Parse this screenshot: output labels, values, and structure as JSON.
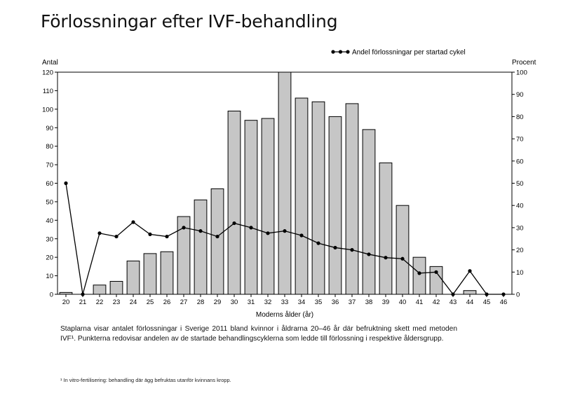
{
  "title": "Förlossningar efter IVF-behandling",
  "chart_data": {
    "type": "bar",
    "categories": [
      "20",
      "21",
      "22",
      "23",
      "24",
      "25",
      "26",
      "27",
      "28",
      "29",
      "30",
      "31",
      "32",
      "33",
      "34",
      "35",
      "36",
      "37",
      "38",
      "39",
      "40",
      "41",
      "42",
      "43",
      "44",
      "45",
      "46"
    ],
    "series": [
      {
        "name": "Antal förlossningar",
        "kind": "bar",
        "axis": "left",
        "values": [
          1,
          0,
          5,
          7,
          18,
          22,
          23,
          42,
          51,
          57,
          99,
          94,
          95,
          120,
          106,
          104,
          96,
          103,
          89,
          71,
          48,
          20,
          15,
          0,
          2,
          0,
          0
        ]
      },
      {
        "name": "Andel förlossningar per startad cykel",
        "kind": "line",
        "axis": "right",
        "values": [
          50,
          0,
          27.5,
          26,
          32.5,
          27,
          26,
          30,
          28.5,
          26,
          32,
          30,
          27.5,
          28.5,
          26.5,
          23,
          21,
          20,
          18,
          16.5,
          16,
          9.5,
          10,
          0,
          10.5,
          0,
          0
        ]
      }
    ],
    "legend": "Andel förlossningar per startad cykel",
    "left_axis_label": "Antal",
    "right_axis_label": "Procent",
    "xlabel": "Moderns ålder (år)",
    "ylim_left": [
      0,
      120
    ],
    "ylim_right": [
      0,
      100
    ],
    "left_ticks": [
      0,
      10,
      20,
      30,
      40,
      50,
      60,
      70,
      80,
      90,
      100,
      110,
      120
    ],
    "right_ticks": [
      0,
      10,
      20,
      30,
      40,
      50,
      60,
      70,
      80,
      90,
      100
    ],
    "legend_position": "top-right"
  },
  "caption": "Staplarna visar antalet förlossningar i Sverige 2011 bland kvinnor i åldrarna 20–46 år där befruktning skett med metoden IVF¹. Punkterna redovisar andelen av de startade behandlingscyklerna som ledde till förlossning i respektive åldersgrupp.",
  "footnote": "¹ In vitro-fertilisering: behandling där ägg befruktas utanför kvinnans kropp."
}
